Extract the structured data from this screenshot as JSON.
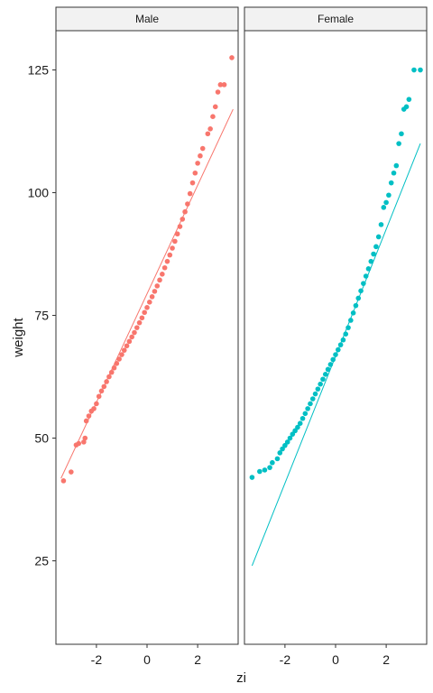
{
  "chart_data": {
    "type": "scatter",
    "subtype": "qq-plot-faceted",
    "xlabel": "zi",
    "ylabel": "weight",
    "xlim": [
      -3.6,
      3.6
    ],
    "ylim": [
      8,
      133
    ],
    "x_ticks": [
      -2,
      0,
      2
    ],
    "x_tick_labels": [
      "-2",
      "0",
      "2"
    ],
    "y_ticks": [
      25,
      50,
      75,
      100,
      125
    ],
    "y_tick_labels": [
      "25",
      "50",
      "75",
      "100",
      "125"
    ],
    "grid": false,
    "legend": "none",
    "panels": [
      {
        "label": "Male",
        "color": "#F8766D",
        "points": [
          [
            -3.3,
            41.3
          ],
          [
            -3.0,
            43.1
          ],
          [
            -2.8,
            48.6
          ],
          [
            -2.7,
            48.9
          ],
          [
            -2.5,
            49.2
          ],
          [
            -2.45,
            50.0
          ],
          [
            -2.4,
            53.5
          ],
          [
            -2.3,
            54.5
          ],
          [
            -2.2,
            55.5
          ],
          [
            -2.1,
            56.0
          ],
          [
            -2.0,
            57.0
          ],
          [
            -1.9,
            58.5
          ],
          [
            -1.8,
            59.6
          ],
          [
            -1.7,
            60.5
          ],
          [
            -1.6,
            61.5
          ],
          [
            -1.5,
            62.5
          ],
          [
            -1.4,
            63.4
          ],
          [
            -1.3,
            64.3
          ],
          [
            -1.2,
            65.2
          ],
          [
            -1.1,
            66.1
          ],
          [
            -1.0,
            67.0
          ],
          [
            -0.9,
            67.9
          ],
          [
            -0.8,
            68.8
          ],
          [
            -0.7,
            69.7
          ],
          [
            -0.6,
            70.6
          ],
          [
            -0.5,
            71.5
          ],
          [
            -0.4,
            72.5
          ],
          [
            -0.3,
            73.5
          ],
          [
            -0.2,
            74.5
          ],
          [
            -0.1,
            75.6
          ],
          [
            0.0,
            76.6
          ],
          [
            0.1,
            77.7
          ],
          [
            0.2,
            78.8
          ],
          [
            0.3,
            79.9
          ],
          [
            0.4,
            81.0
          ],
          [
            0.5,
            82.2
          ],
          [
            0.6,
            83.4
          ],
          [
            0.7,
            84.7
          ],
          [
            0.8,
            86.0
          ],
          [
            0.9,
            87.3
          ],
          [
            1.0,
            88.7
          ],
          [
            1.1,
            90.1
          ],
          [
            1.2,
            91.6
          ],
          [
            1.3,
            93.1
          ],
          [
            1.4,
            94.6
          ],
          [
            1.5,
            96.1
          ],
          [
            1.6,
            97.7
          ],
          [
            1.7,
            99.8
          ],
          [
            1.8,
            102.0
          ],
          [
            1.9,
            104.0
          ],
          [
            2.0,
            106.0
          ],
          [
            2.1,
            107.5
          ],
          [
            2.2,
            109.0
          ],
          [
            2.4,
            112.0
          ],
          [
            2.5,
            113.0
          ],
          [
            2.6,
            115.5
          ],
          [
            2.7,
            117.5
          ],
          [
            2.8,
            120.5
          ],
          [
            2.9,
            122.0
          ],
          [
            3.05,
            122.0
          ],
          [
            3.35,
            127.5
          ]
        ],
        "ref_line": [
          [
            -3.4,
            41.8
          ],
          [
            3.4,
            117.0
          ]
        ]
      },
      {
        "label": "Female",
        "color": "#00BFC4",
        "points": [
          [
            -3.3,
            42.0
          ],
          [
            -3.0,
            43.2
          ],
          [
            -2.8,
            43.5
          ],
          [
            -2.6,
            44.0
          ],
          [
            -2.5,
            45.0
          ],
          [
            -2.3,
            45.8
          ],
          [
            -2.2,
            47.0
          ],
          [
            -2.1,
            47.8
          ],
          [
            -2.0,
            48.5
          ],
          [
            -1.9,
            49.2
          ],
          [
            -1.8,
            50.0
          ],
          [
            -1.7,
            50.8
          ],
          [
            -1.6,
            51.5
          ],
          [
            -1.5,
            52.2
          ],
          [
            -1.4,
            53.0
          ],
          [
            -1.3,
            54.0
          ],
          [
            -1.2,
            55.0
          ],
          [
            -1.1,
            56.0
          ],
          [
            -1.0,
            57.0
          ],
          [
            -0.9,
            58.0
          ],
          [
            -0.8,
            59.0
          ],
          [
            -0.7,
            60.0
          ],
          [
            -0.6,
            61.0
          ],
          [
            -0.5,
            62.0
          ],
          [
            -0.4,
            63.0
          ],
          [
            -0.3,
            64.0
          ],
          [
            -0.2,
            65.0
          ],
          [
            -0.1,
            66.0
          ],
          [
            0.0,
            67.0
          ],
          [
            0.1,
            68.0
          ],
          [
            0.2,
            69.0
          ],
          [
            0.3,
            70.0
          ],
          [
            0.4,
            71.2
          ],
          [
            0.5,
            72.5
          ],
          [
            0.6,
            74.0
          ],
          [
            0.7,
            75.5
          ],
          [
            0.8,
            77.0
          ],
          [
            0.9,
            78.5
          ],
          [
            1.0,
            80.0
          ],
          [
            1.1,
            81.5
          ],
          [
            1.2,
            83.0
          ],
          [
            1.3,
            84.5
          ],
          [
            1.4,
            86.0
          ],
          [
            1.5,
            87.5
          ],
          [
            1.6,
            89.0
          ],
          [
            1.7,
            91.0
          ],
          [
            1.8,
            93.5
          ],
          [
            1.9,
            97.0
          ],
          [
            2.0,
            98.0
          ],
          [
            2.1,
            99.5
          ],
          [
            2.2,
            102.0
          ],
          [
            2.3,
            104.0
          ],
          [
            2.4,
            105.5
          ],
          [
            2.5,
            110.0
          ],
          [
            2.6,
            112.0
          ],
          [
            2.7,
            117.0
          ],
          [
            2.8,
            117.5
          ],
          [
            2.9,
            119.0
          ],
          [
            3.1,
            125.0
          ],
          [
            3.35,
            125.0
          ]
        ],
        "ref_line": [
          [
            -3.3,
            24.0
          ],
          [
            3.35,
            110.0
          ]
        ]
      }
    ]
  }
}
